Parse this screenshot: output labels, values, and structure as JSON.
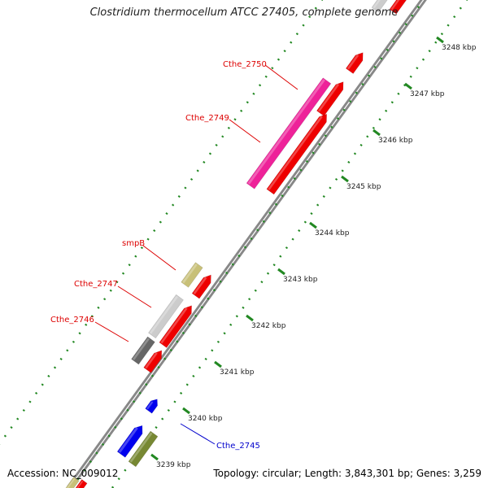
{
  "title": "Clostridium thermocellum ATCC 27405, complete genome",
  "footer": {
    "accession": "Accession: NC_009012",
    "topology": "Topology: circular; Length: 3,843,301 bp; Genes: 3,259"
  },
  "ticks": [
    "3239 kbp",
    "3240 kbp",
    "3241 kbp",
    "3242 kbp",
    "3243 kbp",
    "3244 kbp",
    "3245 kbp",
    "3246 kbp",
    "3247 kbp",
    "3248 kbp"
  ],
  "gene_labels": [
    {
      "text": "Cthe_2750",
      "color": "#dd0000"
    },
    {
      "text": "Cthe_2749",
      "color": "#dd0000"
    },
    {
      "text": "smpB",
      "color": "#dd0000"
    },
    {
      "text": "Cthe_2747",
      "color": "#dd0000"
    },
    {
      "text": "Cthe_2746",
      "color": "#dd0000"
    },
    {
      "text": "Cthe_2745",
      "color": "#0000cc"
    }
  ],
  "colors": {
    "cds_red": "#ee0000",
    "rna_magenta": "#ee2299",
    "khaki": "#c8c078",
    "light_gray": "#cccccc",
    "dark_gray": "#666666",
    "blue": "#0000ee",
    "olive": "#778833",
    "dots": "#228822",
    "backbone": "#888888"
  }
}
